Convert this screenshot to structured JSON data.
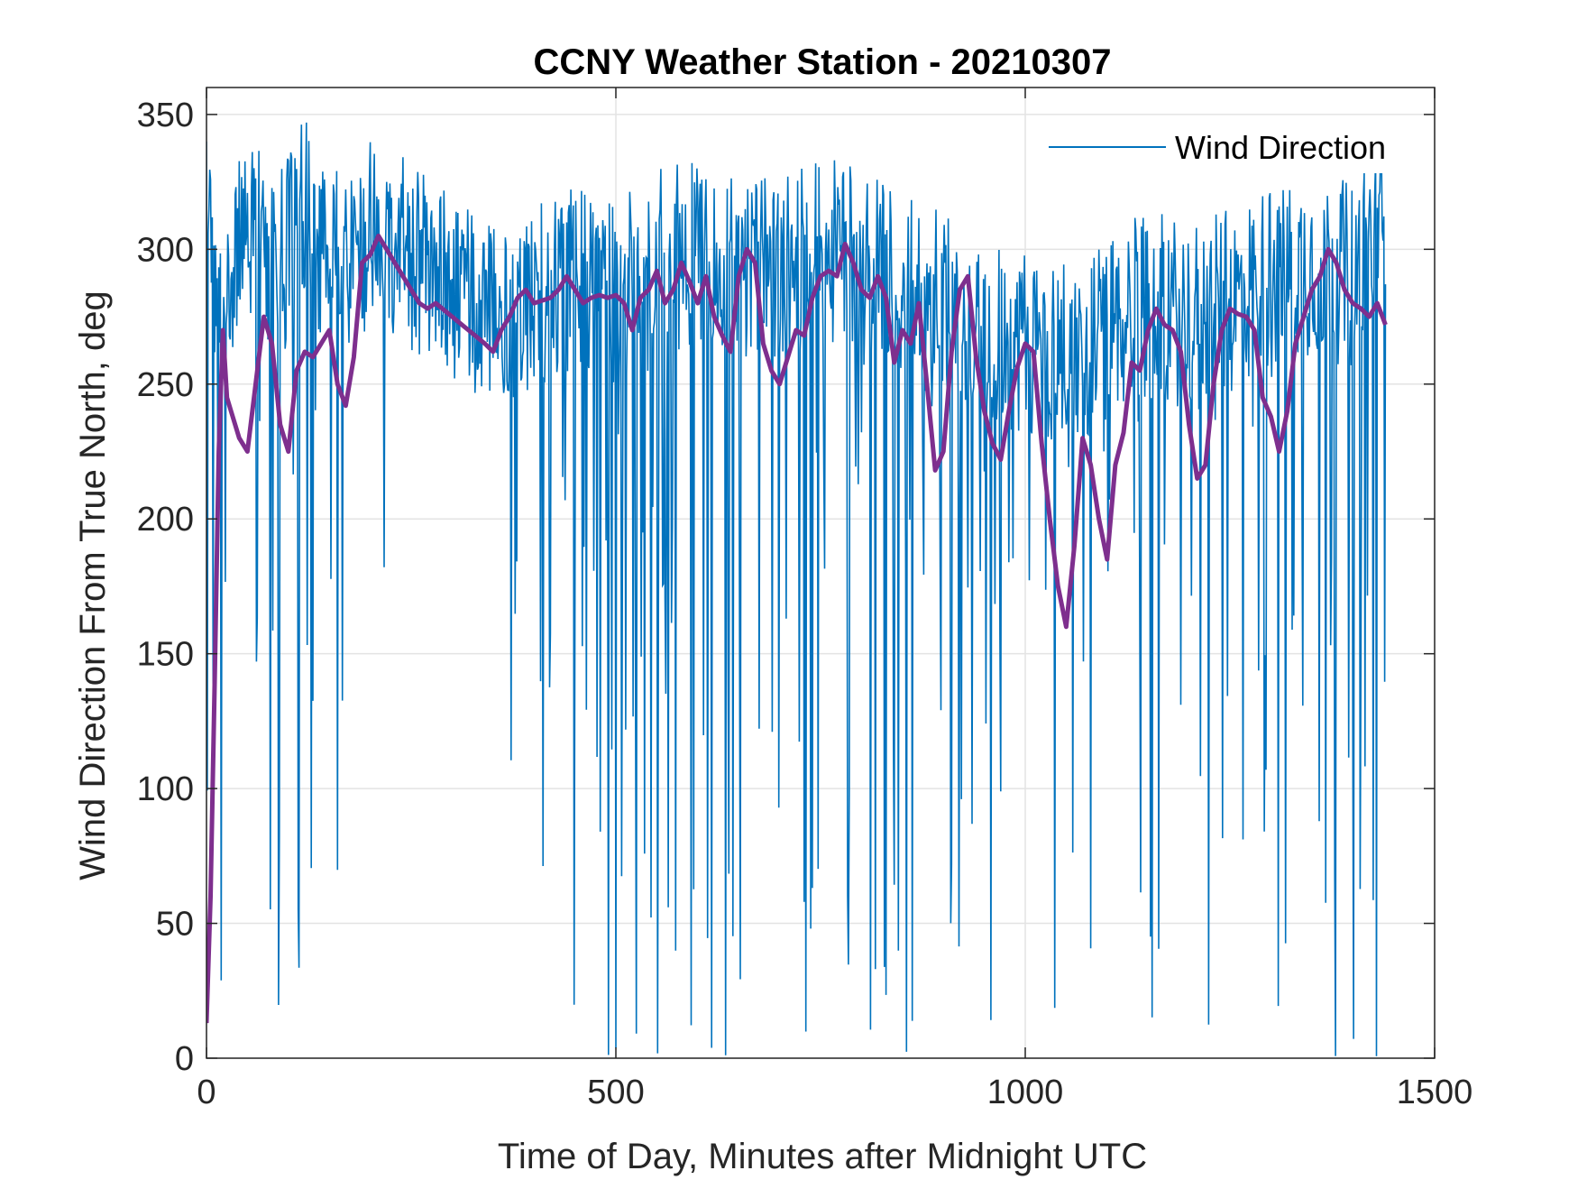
{
  "chart_data": {
    "type": "line",
    "title": "CCNY Weather Station - 20210307",
    "xlabel": "Time of Day, Minutes after Midnight UTC",
    "ylabel": "Wind Direction From True North, deg",
    "xlim": [
      0,
      1500
    ],
    "ylim": [
      0,
      360
    ],
    "xticks": [
      0,
      500,
      1000,
      1500
    ],
    "yticks": [
      0,
      50,
      100,
      150,
      200,
      250,
      300,
      350
    ],
    "grid": true,
    "legend": {
      "position": "top-right",
      "entries": [
        "Wind Direction"
      ]
    },
    "series": [
      {
        "name": "Wind Direction",
        "color": "#0072bd",
        "style": "thin-line",
        "sampled_every_minutes": 1,
        "x": [
          0,
          1440
        ],
        "envelope_description_points": [
          [
            0,
            315
          ],
          [
            20,
            270
          ],
          [
            40,
            300
          ],
          [
            60,
            310
          ],
          [
            80,
            290
          ],
          [
            100,
            300
          ],
          [
            120,
            320
          ],
          [
            140,
            300
          ],
          [
            160,
            295
          ],
          [
            180,
            300
          ],
          [
            200,
            305
          ],
          [
            240,
            300
          ],
          [
            280,
            290
          ],
          [
            320,
            280
          ],
          [
            360,
            275
          ],
          [
            400,
            285
          ],
          [
            450,
            290
          ],
          [
            500,
            285
          ],
          [
            550,
            295
          ],
          [
            600,
            300
          ],
          [
            650,
            295
          ],
          [
            700,
            290
          ],
          [
            750,
            300
          ],
          [
            800,
            295
          ],
          [
            850,
            285
          ],
          [
            900,
            280
          ],
          [
            950,
            270
          ],
          [
            1000,
            265
          ],
          [
            1050,
            260
          ],
          [
            1100,
            270
          ],
          [
            1150,
            280
          ],
          [
            1200,
            275
          ],
          [
            1250,
            280
          ],
          [
            1300,
            290
          ],
          [
            1350,
            295
          ],
          [
            1400,
            290
          ],
          [
            1440,
            310
          ]
        ]
      },
      {
        "name": "",
        "color": "#7e2f8e",
        "style": "thick-line",
        "x": [
          0,
          5,
          10,
          15,
          20,
          25,
          30,
          40,
          50,
          60,
          70,
          80,
          90,
          100,
          110,
          120,
          130,
          140,
          150,
          160,
          170,
          180,
          190,
          200,
          210,
          220,
          230,
          240,
          250,
          260,
          270,
          280,
          300,
          320,
          340,
          350,
          360,
          370,
          380,
          390,
          400,
          420,
          430,
          440,
          450,
          460,
          470,
          480,
          490,
          500,
          510,
          520,
          530,
          540,
          550,
          560,
          570,
          580,
          590,
          600,
          610,
          620,
          630,
          640,
          650,
          660,
          670,
          680,
          690,
          700,
          710,
          720,
          730,
          740,
          750,
          760,
          770,
          780,
          790,
          800,
          810,
          820,
          830,
          840,
          850,
          860,
          870,
          880,
          890,
          900,
          910,
          920,
          930,
          940,
          950,
          960,
          970,
          980,
          990,
          1000,
          1010,
          1020,
          1030,
          1040,
          1050,
          1060,
          1070,
          1080,
          1090,
          1100,
          1110,
          1120,
          1130,
          1140,
          1150,
          1160,
          1170,
          1180,
          1190,
          1200,
          1210,
          1220,
          1230,
          1240,
          1250,
          1260,
          1270,
          1280,
          1290,
          1300,
          1310,
          1320,
          1330,
          1340,
          1350,
          1360,
          1370,
          1380,
          1390,
          1400,
          1410,
          1420,
          1430,
          1440
        ],
        "y": [
          13,
          60,
          140,
          225,
          270,
          245,
          240,
          230,
          225,
          250,
          275,
          265,
          235,
          225,
          255,
          262,
          260,
          265,
          270,
          250,
          242,
          260,
          295,
          298,
          305,
          300,
          295,
          290,
          285,
          280,
          278,
          280,
          275,
          270,
          265,
          262,
          270,
          275,
          282,
          285,
          280,
          282,
          285,
          290,
          285,
          280,
          282,
          283,
          282,
          283,
          280,
          270,
          282,
          285,
          292,
          280,
          285,
          295,
          288,
          280,
          290,
          275,
          268,
          262,
          290,
          300,
          295,
          265,
          255,
          250,
          260,
          270,
          268,
          282,
          290,
          292,
          290,
          302,
          295,
          285,
          282,
          290,
          282,
          258,
          270,
          265,
          280,
          250,
          218,
          225,
          262,
          285,
          290,
          260,
          240,
          228,
          222,
          240,
          256,
          265,
          262,
          228,
          200,
          175,
          160,
          190,
          230,
          220,
          200,
          185,
          220,
          232,
          258,
          255,
          270,
          278,
          272,
          270,
          262,
          235,
          215,
          220,
          250,
          270,
          278,
          276,
          275,
          270,
          245,
          238,
          225,
          240,
          265,
          275,
          285,
          290,
          300,
          295,
          285,
          280,
          278,
          275,
          280,
          272
        ]
      }
    ]
  }
}
